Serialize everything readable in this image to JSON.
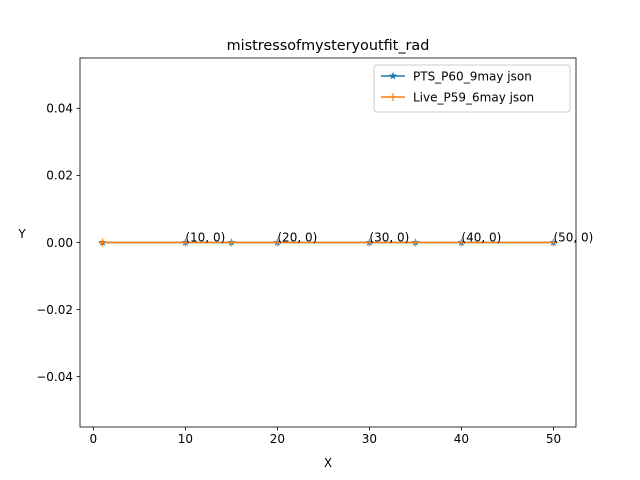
{
  "chart_data": {
    "type": "line",
    "title": "mistressofmysteryoutfit_rad",
    "xlabel": "X",
    "ylabel": "Y",
    "xlim": [
      -1.45,
      52.45
    ],
    "ylim": [
      -0.055,
      0.055
    ],
    "xticks": [
      0,
      10,
      20,
      30,
      40,
      50
    ],
    "yticks": [
      -0.04,
      -0.02,
      0.0,
      0.02,
      0.04
    ],
    "xtick_labels": [
      "0",
      "10",
      "20",
      "30",
      "40",
      "50"
    ],
    "ytick_labels": [
      "−0.04",
      "−0.02",
      "0.00",
      "0.02",
      "0.04"
    ],
    "legend_position": "top-right",
    "grid": false,
    "series": [
      {
        "name": "PTS_P60_9may json",
        "color": "#1f77b4",
        "marker": "star",
        "x": [
          1,
          10,
          15,
          20,
          30,
          35,
          40,
          50
        ],
        "y": [
          0,
          0,
          0,
          0,
          0,
          0,
          0,
          0
        ]
      },
      {
        "name": "Live_P59_6may json",
        "color": "#ff7f0e",
        "marker": "plus",
        "x": [
          1,
          10,
          15,
          20,
          30,
          35,
          40,
          50
        ],
        "y": [
          0,
          0,
          0,
          0,
          0,
          0,
          0,
          0
        ]
      }
    ],
    "annotations": [
      {
        "text": "(10, 0)",
        "x": 10,
        "y": 0
      },
      {
        "text": "(20, 0)",
        "x": 20,
        "y": 0
      },
      {
        "text": "(30, 0)",
        "x": 30,
        "y": 0
      },
      {
        "text": "(40, 0)",
        "x": 40,
        "y": 0
      },
      {
        "text": "(50, 0)",
        "x": 50,
        "y": 0
      }
    ]
  }
}
